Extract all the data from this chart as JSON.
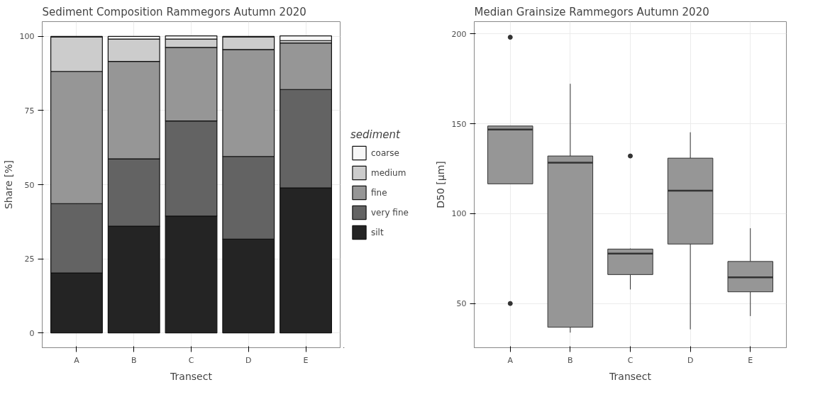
{
  "chart_data": [
    {
      "type": "bar",
      "title": "Sediment Composition Rammegors Autumn 2020",
      "xlabel": "Transect",
      "ylabel": "Share [%]",
      "legend_title": "sediment",
      "categories": [
        "A",
        "B",
        "C",
        "D",
        "E"
      ],
      "stacked": true,
      "series": [
        {
          "name": "silt",
          "color": "#242424",
          "values": [
            20.2,
            36.0,
            39.4,
            31.6,
            48.9
          ]
        },
        {
          "name": "very fine",
          "color": "#636363",
          "values": [
            23.4,
            22.7,
            32.1,
            27.9,
            33.2
          ]
        },
        {
          "name": "fine",
          "color": "#969696",
          "values": [
            44.6,
            32.9,
            24.8,
            36.1,
            15.7
          ]
        },
        {
          "name": "medium",
          "color": "#cccccc",
          "values": [
            11.6,
            7.5,
            2.8,
            4.2,
            0.8
          ]
        },
        {
          "name": "coarse",
          "color": "#f7f7f7",
          "values": [
            0.2,
            0.9,
            1.1,
            0.2,
            1.6
          ]
        }
      ],
      "ylim": [
        -5,
        105
      ],
      "yticks": [
        0,
        25,
        50,
        75,
        100
      ],
      "grid": true,
      "legend": "right"
    },
    {
      "type": "box",
      "title": "Median Grainsize Rammegors Autumn 2020",
      "xlabel": "Transect",
      "ylabel": "D50 [µm]",
      "categories": [
        "A",
        "B",
        "C",
        "D",
        "E"
      ],
      "series": [
        {
          "color": "#969696",
          "boxes": [
            {
              "low": 116.6,
              "q1": 116.6,
              "median": 146.8,
              "q3": 148.8,
              "high": 148.8,
              "outliers": [
                198.2,
                50
              ]
            },
            {
              "low": 33.8,
              "q1": 36.8,
              "median": 128.4,
              "q3": 132.1,
              "high": 172.3
            },
            {
              "low": 57.8,
              "q1": 66.1,
              "median": 77.8,
              "q3": 80.3,
              "high": 80.6,
              "outliers": [
                132.1
              ]
            },
            {
              "low": 35.6,
              "q1": 83.1,
              "median": 112.8,
              "q3": 130.9,
              "high": 145.3
            },
            {
              "low": 43,
              "q1": 56.5,
              "median": 64.6,
              "q3": 73.4,
              "high": 91.9
            }
          ]
        }
      ],
      "ylim": [
        25.4,
        206.9
      ],
      "yticks": [
        50,
        100,
        150,
        200
      ],
      "grid": true
    }
  ]
}
